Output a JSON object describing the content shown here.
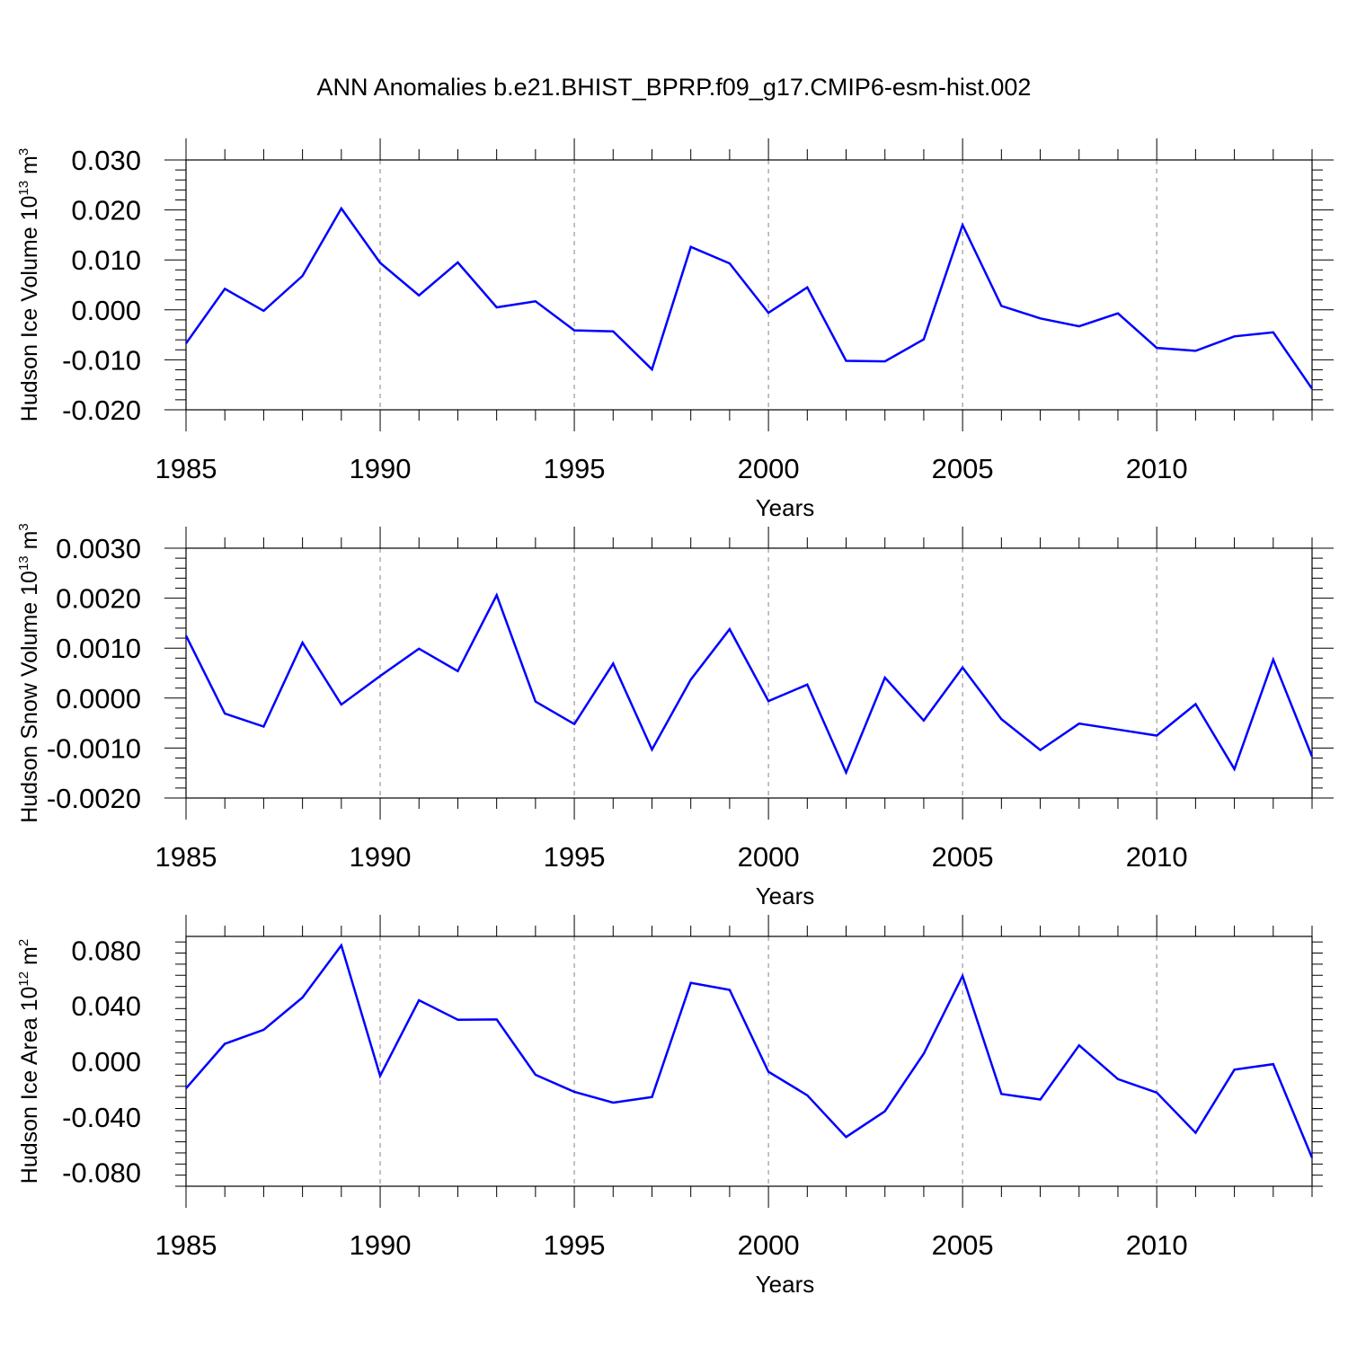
{
  "title": "ANN Anomalies b.e21.BHIST_BPRP.f09_g17.CMIP6-esm-hist.002",
  "chart_data": [
    {
      "type": "line",
      "ylabel": "Hudson Ice Volume 10",
      "ylabel_exp": "13",
      "ylabel_unit": " m",
      "ylabel_unit_exp": "3",
      "xlabel": "Years",
      "xlim": [
        1985,
        2014
      ],
      "ylim": [
        -0.02,
        0.03
      ],
      "yticks": [
        -0.02,
        -0.01,
        0.0,
        0.01,
        0.02,
        0.03
      ],
      "ytick_labels": [
        "-0.020",
        "-0.010",
        "0.000",
        "0.010",
        "0.020",
        "0.030"
      ],
      "xticks": [
        1985,
        1990,
        1995,
        2000,
        2005,
        2010
      ],
      "xtick_labels": [
        "1985",
        "1990",
        "1995",
        "2000",
        "2005",
        "2010"
      ],
      "grid": "dashed vertical at major x ticks",
      "line_color": "#0000ff",
      "x": [
        1985,
        1986,
        1987,
        1988,
        1989,
        1990,
        1991,
        1992,
        1993,
        1994,
        1995,
        1996,
        1997,
        1998,
        1999,
        2000,
        2001,
        2002,
        2003,
        2004,
        2005,
        2006,
        2007,
        2008,
        2009,
        2010,
        2011,
        2012,
        2013,
        2014
      ],
      "y": [
        -0.0067,
        0.0042,
        -0.0002,
        0.0068,
        0.0203,
        0.0094,
        0.0029,
        0.0095,
        0.0005,
        0.0017,
        -0.0041,
        -0.0043,
        -0.0119,
        0.0126,
        0.0093,
        -0.0006,
        0.0045,
        -0.0102,
        -0.0103,
        -0.0059,
        0.017,
        0.0008,
        -0.0017,
        -0.0033,
        -0.0007,
        -0.0076,
        -0.0082,
        -0.0053,
        -0.0045,
        -0.0158
      ]
    },
    {
      "type": "line",
      "ylabel": "Hudson Snow Volume 10",
      "ylabel_exp": "13",
      "ylabel_unit": " m",
      "ylabel_unit_exp": "3",
      "xlabel": "Years",
      "xlim": [
        1985,
        2014
      ],
      "ylim": [
        -0.002,
        0.003
      ],
      "yticks": [
        -0.002,
        -0.001,
        0.0,
        0.001,
        0.002,
        0.003
      ],
      "ytick_labels": [
        "-0.0020",
        "-0.0010",
        "0.0000",
        "0.0010",
        "0.0020",
        "0.0030"
      ],
      "xticks": [
        1985,
        1990,
        1995,
        2000,
        2005,
        2010
      ],
      "xtick_labels": [
        "1985",
        "1990",
        "1995",
        "2000",
        "2005",
        "2010"
      ],
      "grid": "dashed vertical at major x ticks",
      "line_color": "#0000ff",
      "x": [
        1985,
        1986,
        1987,
        1988,
        1989,
        1990,
        1991,
        1992,
        1993,
        1994,
        1995,
        1996,
        1997,
        1998,
        1999,
        2000,
        2001,
        2002,
        2003,
        2004,
        2005,
        2006,
        2007,
        2008,
        2009,
        2010,
        2011,
        2012,
        2013,
        2014
      ],
      "y": [
        0.00125,
        -0.00031,
        -0.00057,
        0.00111,
        -0.00013,
        0.00044,
        0.00099,
        0.00054,
        0.00206,
        -7e-05,
        -0.00052,
        0.00069,
        -0.00103,
        0.00037,
        0.00138,
        -6e-05,
        0.00027,
        -0.00149,
        0.00041,
        -0.00045,
        0.00061,
        -0.00042,
        -0.00104,
        -0.00051,
        -0.00063,
        -0.00075,
        -0.00012,
        -0.00142,
        0.00077,
        -0.00117
      ]
    },
    {
      "type": "line",
      "ylabel": "Hudson Ice Area 10",
      "ylabel_exp": "12",
      "ylabel_unit": " m",
      "ylabel_unit_exp": "2",
      "xlabel": "Years",
      "xlim": [
        1985,
        2014
      ],
      "ylim": [
        -0.09,
        0.09
      ],
      "yticks": [
        -0.08,
        -0.04,
        0.0,
        0.04,
        0.08
      ],
      "ytick_labels": [
        "-0.080",
        "-0.040",
        "0.000",
        "0.040",
        "0.080"
      ],
      "xticks": [
        1985,
        1990,
        1995,
        2000,
        2005,
        2010
      ],
      "xtick_labels": [
        "1985",
        "1990",
        "1995",
        "2000",
        "2005",
        "2010"
      ],
      "grid": "dashed vertical at major x ticks",
      "line_color": "#0000ff",
      "x": [
        1985,
        1986,
        1987,
        1988,
        1989,
        1990,
        1991,
        1992,
        1993,
        1994,
        1995,
        1996,
        1997,
        1998,
        1999,
        2000,
        2001,
        2002,
        2003,
        2004,
        2005,
        2006,
        2007,
        2008,
        2009,
        2010,
        2011,
        2012,
        2013,
        2014
      ],
      "y": [
        -0.0195,
        0.0126,
        0.0227,
        0.046,
        0.0835,
        -0.0105,
        0.044,
        0.03,
        0.0302,
        -0.0097,
        -0.022,
        -0.0298,
        -0.0257,
        0.0565,
        0.0515,
        -0.0075,
        -0.0245,
        -0.0545,
        -0.036,
        0.0055,
        0.0615,
        -0.0235,
        -0.0275,
        0.0115,
        -0.0128,
        -0.0225,
        -0.0515,
        -0.006,
        -0.002,
        -0.0695
      ]
    }
  ]
}
